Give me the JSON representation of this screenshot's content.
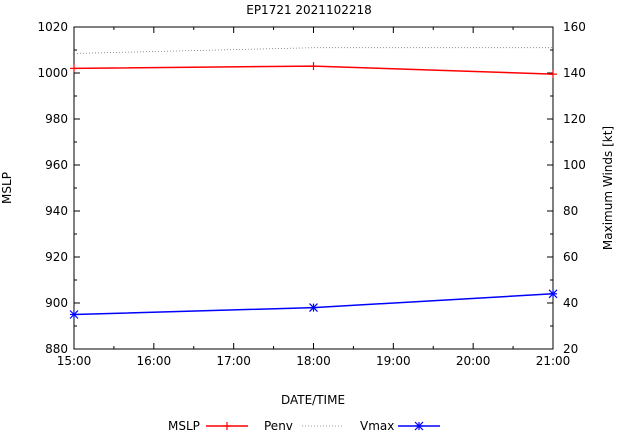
{
  "chart_data": {
    "type": "line",
    "title": "EP1721 2021102218",
    "xlabel": "DATE/TIME",
    "ylabel_left": "MSLP",
    "ylabel_right": "Maximum Winds [kt]",
    "x_ticks": [
      "15:00",
      "16:00",
      "17:00",
      "18:00",
      "19:00",
      "20:00",
      "21:00"
    ],
    "x_hours": [
      15,
      16,
      17,
      18,
      19,
      20,
      21
    ],
    "xlim": [
      15,
      21
    ],
    "ylim_left": [
      880,
      1020
    ],
    "ylim_right": [
      20,
      160
    ],
    "y_ticks_left": [
      880,
      900,
      920,
      940,
      960,
      980,
      1000,
      1020
    ],
    "y_ticks_right": [
      20,
      40,
      60,
      80,
      100,
      120,
      140,
      160
    ],
    "grid": false,
    "legend_position": "bottom",
    "series": [
      {
        "name": "MSLP",
        "axis": "left",
        "color": "#ff0000",
        "style": "solid",
        "marker": "plus",
        "x": [
          15,
          18,
          21
        ],
        "values": [
          1002,
          1003,
          999.5
        ]
      },
      {
        "name": "Penv",
        "axis": "left",
        "color": "#777777",
        "style": "dotted",
        "marker": "none",
        "x": [
          15,
          18,
          21
        ],
        "values": [
          1008.5,
          1011,
          1011
        ]
      },
      {
        "name": "Vmax",
        "axis": "right",
        "color": "#0000ff",
        "style": "solid",
        "marker": "star",
        "x": [
          15,
          18,
          21
        ],
        "values": [
          35,
          38,
          44
        ]
      }
    ]
  }
}
